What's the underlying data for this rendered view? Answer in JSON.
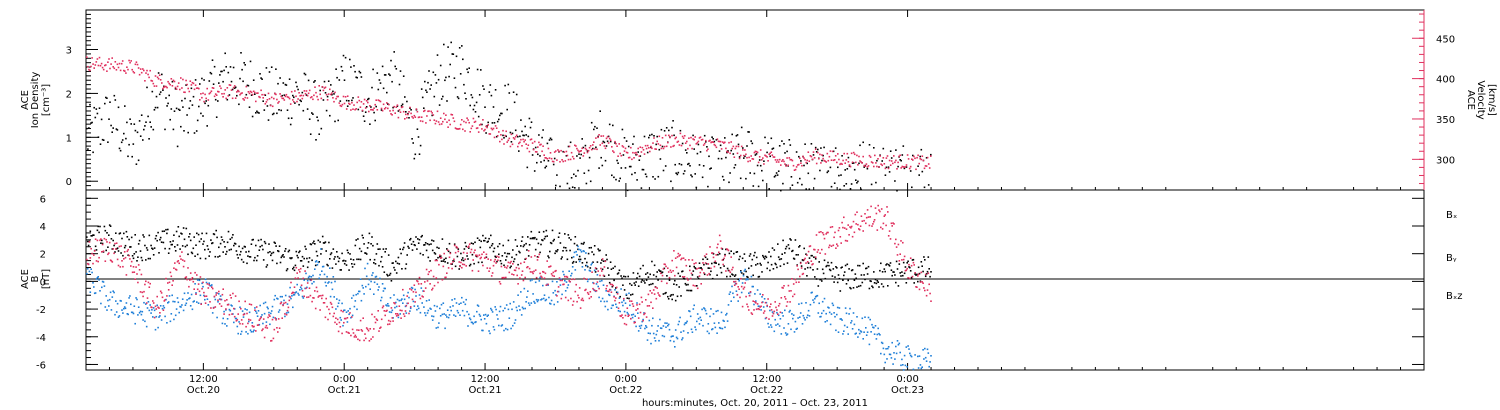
{
  "colors": {
    "black": "#000000",
    "blue": "#1f7fd8",
    "red": "#e0305e"
  },
  "xaxis": {
    "title": "hours:minutes, Oct. 20, 2011 – Oct. 23, 2011",
    "range_hours": [
      2,
      116
    ],
    "ticks": [
      {
        "hours": 12,
        "time": "12:00",
        "date": "Oct.20"
      },
      {
        "hours": 24,
        "time": "0:00",
        "date": "Oct.21"
      },
      {
        "hours": 36,
        "time": "12:00",
        "date": "Oct.21"
      },
      {
        "hours": 48,
        "time": "0:00",
        "date": "Oct.22"
      },
      {
        "hours": 60,
        "time": "12:00",
        "date": "Oct.22"
      },
      {
        "hours": 72,
        "time": "0:00",
        "date": "Oct.23"
      }
    ]
  },
  "chart_data": [
    {
      "type": "scatter",
      "ylabel_left": [
        "ACE",
        "Ion Density",
        "[cm⁻³]"
      ],
      "ylabel_right": [
        "ACE",
        "Velocity",
        "[km/s]"
      ],
      "ylim_left": [
        -0.2,
        3.9
      ],
      "ylim_right": [
        262,
        485
      ],
      "yticks_left": [
        0,
        1,
        2,
        3
      ],
      "yticks_right": [
        300,
        350,
        400,
        450
      ],
      "series": [
        {
          "axis": "left",
          "color": "black",
          "points": [
            [
              2,
              1.0
            ],
            [
              4,
              1.5
            ],
            [
              6,
              0.8
            ],
            [
              8,
              2.1
            ],
            [
              10,
              1.4
            ],
            [
              12,
              1.9
            ],
            [
              14,
              2.4
            ],
            [
              16,
              2.2
            ],
            [
              18,
              1.9
            ],
            [
              20,
              2.0
            ],
            [
              22,
              1.5
            ],
            [
              24,
              2.3
            ],
            [
              26,
              1.9
            ],
            [
              28,
              2.4
            ],
            [
              30,
              1.1
            ],
            [
              32,
              2.4
            ],
            [
              34,
              2.6
            ],
            [
              36,
              1.8
            ],
            [
              38,
              1.6
            ],
            [
              40,
              0.8
            ],
            [
              42,
              0.2
            ],
            [
              44,
              0.3
            ],
            [
              46,
              1.1
            ],
            [
              48,
              0.4
            ],
            [
              50,
              0.6
            ],
            [
              52,
              0.7
            ],
            [
              54,
              0.4
            ],
            [
              56,
              0.3
            ],
            [
              58,
              0.6
            ],
            [
              60,
              0.4
            ],
            [
              62,
              0.3
            ],
            [
              64,
              0.2
            ],
            [
              66,
              0.3
            ],
            [
              68,
              0.3
            ],
            [
              70,
              0.2
            ],
            [
              72,
              0.3
            ],
            [
              74,
              0.2
            ]
          ]
        },
        {
          "axis": "right",
          "color": "red",
          "points": [
            [
              2,
              420
            ],
            [
              4,
              418
            ],
            [
              6,
              415
            ],
            [
              8,
              398
            ],
            [
              10,
              395
            ],
            [
              12,
              380
            ],
            [
              14,
              385
            ],
            [
              16,
              382
            ],
            [
              18,
              375
            ],
            [
              20,
              378
            ],
            [
              22,
              385
            ],
            [
              24,
              372
            ],
            [
              26,
              368
            ],
            [
              28,
              363
            ],
            [
              30,
              355
            ],
            [
              32,
              352
            ],
            [
              34,
              345
            ],
            [
              36,
              342
            ],
            [
              38,
              325
            ],
            [
              40,
              318
            ],
            [
              42,
              305
            ],
            [
              44,
              312
            ],
            [
              46,
              325
            ],
            [
              48,
              305
            ],
            [
              50,
              318
            ],
            [
              52,
              325
            ],
            [
              54,
              322
            ],
            [
              56,
              318
            ],
            [
              58,
              308
            ],
            [
              60,
              302
            ],
            [
              62,
              295
            ],
            [
              64,
              305
            ],
            [
              66,
              302
            ],
            [
              68,
              300
            ],
            [
              70,
              298
            ],
            [
              72,
              298
            ],
            [
              74,
              296
            ]
          ]
        }
      ]
    },
    {
      "type": "scatter",
      "ylabel": [
        "ACE",
        "B",
        "[nT]"
      ],
      "ylim": [
        -6.4,
        6.6
      ],
      "yticks": [
        -6,
        -4,
        -2,
        0,
        2,
        4,
        6
      ],
      "legend": [
        {
          "label": "Bₓ",
          "color": "black"
        },
        {
          "label": "Bᵧ",
          "color": "blue"
        },
        {
          "label": "Bₓz",
          "color": "red"
        }
      ],
      "series": [
        {
          "name": "Bx",
          "color": "black",
          "points": [
            [
              2,
              3.0
            ],
            [
              4,
              3.2
            ],
            [
              6,
              2.5
            ],
            [
              8,
              2.7
            ],
            [
              10,
              3.1
            ],
            [
              12,
              2.6
            ],
            [
              14,
              2.9
            ],
            [
              16,
              2.2
            ],
            [
              18,
              2.0
            ],
            [
              20,
              1.5
            ],
            [
              22,
              2.4
            ],
            [
              24,
              1.5
            ],
            [
              26,
              2.7
            ],
            [
              28,
              1.0
            ],
            [
              30,
              2.7
            ],
            [
              32,
              2.4
            ],
            [
              34,
              1.8
            ],
            [
              36,
              2.5
            ],
            [
              38,
              2.0
            ],
            [
              40,
              2.7
            ],
            [
              42,
              2.8
            ],
            [
              44,
              2.2
            ],
            [
              46,
              1.3
            ],
            [
              48,
              -0.6
            ],
            [
              50,
              0.8
            ],
            [
              52,
              -0.5
            ],
            [
              54,
              0.5
            ],
            [
              56,
              1.5
            ],
            [
              58,
              1.1
            ],
            [
              60,
              1.3
            ],
            [
              62,
              2.4
            ],
            [
              64,
              0.8
            ],
            [
              66,
              0.3
            ],
            [
              68,
              0.4
            ],
            [
              70,
              0.5
            ],
            [
              72,
              0.8
            ],
            [
              74,
              0.9
            ]
          ]
        },
        {
          "name": "By",
          "color": "blue",
          "points": [
            [
              2,
              0.5
            ],
            [
              4,
              -1.5
            ],
            [
              6,
              -2.0
            ],
            [
              8,
              -2.5
            ],
            [
              10,
              -1.5
            ],
            [
              12,
              -0.5
            ],
            [
              14,
              -2.5
            ],
            [
              16,
              -3.0
            ],
            [
              18,
              -2.0
            ],
            [
              20,
              -1.0
            ],
            [
              22,
              1.5
            ],
            [
              24,
              -2.5
            ],
            [
              26,
              0.5
            ],
            [
              28,
              -2.0
            ],
            [
              30,
              -1.0
            ],
            [
              32,
              -2.5
            ],
            [
              34,
              -2.0
            ],
            [
              36,
              -2.8
            ],
            [
              38,
              -2.5
            ],
            [
              40,
              -0.5
            ],
            [
              42,
              -1.0
            ],
            [
              44,
              2.0
            ],
            [
              46,
              -1.0
            ],
            [
              48,
              -1.5
            ],
            [
              50,
              -3.5
            ],
            [
              52,
              -3.8
            ],
            [
              54,
              -2.5
            ],
            [
              56,
              -3.0
            ],
            [
              58,
              0.5
            ],
            [
              60,
              -2.5
            ],
            [
              62,
              -3.0
            ],
            [
              64,
              -1.5
            ],
            [
              66,
              -2.8
            ],
            [
              68,
              -3.0
            ],
            [
              70,
              -4.8
            ],
            [
              72,
              -5.6
            ],
            [
              74,
              -5.8
            ]
          ]
        },
        {
          "name": "Bz",
          "color": "red",
          "points": [
            [
              2,
              2.0
            ],
            [
              4,
              2.5
            ],
            [
              6,
              1.0
            ],
            [
              8,
              -2.0
            ],
            [
              10,
              1.5
            ],
            [
              12,
              -1.0
            ],
            [
              14,
              -1.5
            ],
            [
              16,
              -2.5
            ],
            [
              18,
              -3.5
            ],
            [
              20,
              0.5
            ],
            [
              22,
              -1.5
            ],
            [
              24,
              -3.0
            ],
            [
              26,
              -3.5
            ],
            [
              28,
              -2.0
            ],
            [
              30,
              -1.0
            ],
            [
              32,
              1.0
            ],
            [
              34,
              2.0
            ],
            [
              36,
              1.5
            ],
            [
              38,
              0.5
            ],
            [
              40,
              1.5
            ],
            [
              42,
              0.0
            ],
            [
              44,
              -1.0
            ],
            [
              46,
              0.8
            ],
            [
              48,
              -2.5
            ],
            [
              50,
              -1.5
            ],
            [
              52,
              1.5
            ],
            [
              54,
              0.5
            ],
            [
              56,
              2.5
            ],
            [
              58,
              -1.0
            ],
            [
              60,
              -2.0
            ],
            [
              62,
              -0.5
            ],
            [
              64,
              2.5
            ],
            [
              66,
              3.5
            ],
            [
              68,
              4.5
            ],
            [
              70,
              4.8
            ],
            [
              72,
              1.0
            ],
            [
              74,
              -0.5
            ]
          ]
        }
      ]
    }
  ]
}
